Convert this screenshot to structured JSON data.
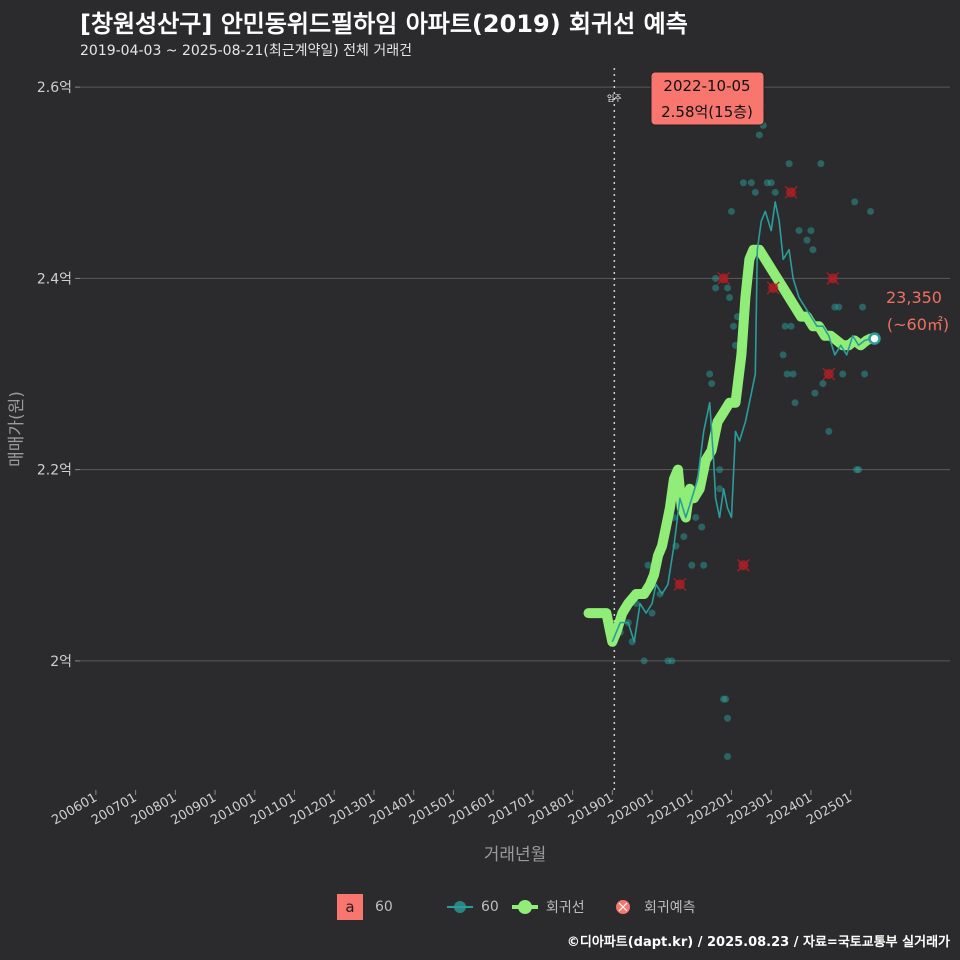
{
  "title": "[창원성산구] 안민동위드필하임 아파트(2019) 회귀선 예측",
  "subtitle": "2019-04-03 ~ 2025-08-21(최근계약일) 전체 거래건",
  "footer": "©디아파트(dapt.kr) / 2025.08.23 / 자료=국토교통부 실거래가",
  "colors": {
    "background": "#2b2b2d",
    "grid": "#5a5a5a",
    "teal": "#2a9d9a",
    "green": "#90ee78",
    "red": "#f8766d",
    "redmark": "#b01e24"
  },
  "legend": {
    "label_box_letter": "a",
    "label_box_text": "60",
    "series_60": "60",
    "series_regression": "회귀선",
    "series_prediction": "회귀예측"
  },
  "chart_data": {
    "type": "scatter",
    "title": "[창원성산구] 안민동위드필하임 아파트(2019) 회귀선 예측",
    "xlabel": "거래년월",
    "ylabel": "매매가(원)",
    "x_unit": "decimal year",
    "xlim": [
      2005.6,
      2027.5
    ],
    "ylim": [
      1.865,
      2.62
    ],
    "x_tick_labels": [
      "200601",
      "200701",
      "200801",
      "200901",
      "201001",
      "201101",
      "201201",
      "201301",
      "201401",
      "201501",
      "201601",
      "201701",
      "201801",
      "201901",
      "202001",
      "202101",
      "202201",
      "202301",
      "202401",
      "202501"
    ],
    "x_ticks": [
      2006.0,
      2007.0,
      2008.0,
      2009.0,
      2010.0,
      2011.0,
      2012.0,
      2013.0,
      2014.0,
      2015.0,
      2016.0,
      2017.0,
      2018.0,
      2019.0,
      2020.0,
      2021.0,
      2022.0,
      2023.0,
      2024.0,
      2025.0
    ],
    "y_ticks": [
      2.0,
      2.2,
      2.4,
      2.6
    ],
    "y_tick_labels": [
      "2억",
      "2.2억",
      "2.4억",
      "2.6억"
    ],
    "move_in_line": {
      "x": 2019.05,
      "label": "입주"
    },
    "annotation_top": {
      "x": 2021.75,
      "y": 2.58,
      "date": "2022-10-05",
      "text": "2.58억(15층)"
    },
    "annotation_right": {
      "x": 2025.6,
      "y": 2.337,
      "value": "23,350",
      "area": "(~60㎡)"
    },
    "scatter_60": [
      [
        2019.2,
        2.03
      ],
      [
        2019.3,
        2.05
      ],
      [
        2019.4,
        2.04
      ],
      [
        2019.5,
        2.02
      ],
      [
        2019.6,
        2.06
      ],
      [
        2019.8,
        2.0
      ],
      [
        2019.9,
        2.1
      ],
      [
        2020.0,
        2.05
      ],
      [
        2020.2,
        2.07
      ],
      [
        2020.4,
        2.0
      ],
      [
        2020.5,
        2.0
      ],
      [
        2020.55,
        2.15
      ],
      [
        2020.6,
        2.12
      ],
      [
        2020.7,
        2.2
      ],
      [
        2020.8,
        2.13
      ],
      [
        2020.9,
        2.16
      ],
      [
        2021.0,
        2.1
      ],
      [
        2021.1,
        2.15
      ],
      [
        2021.25,
        2.14
      ],
      [
        2021.3,
        2.1
      ],
      [
        2021.35,
        2.2
      ],
      [
        2021.45,
        2.3
      ],
      [
        2021.5,
        2.29
      ],
      [
        2021.6,
        2.4
      ],
      [
        2021.6,
        2.39
      ],
      [
        2021.7,
        2.2
      ],
      [
        2021.7,
        2.18
      ],
      [
        2021.8,
        1.96
      ],
      [
        2021.85,
        1.96
      ],
      [
        2021.9,
        1.94
      ],
      [
        2021.9,
        1.9
      ],
      [
        2021.9,
        2.39
      ],
      [
        2021.95,
        2.38
      ],
      [
        2022.0,
        2.47
      ],
      [
        2022.05,
        2.35
      ],
      [
        2022.1,
        2.33
      ],
      [
        2022.15,
        2.36
      ],
      [
        2022.3,
        2.5
      ],
      [
        2022.5,
        2.5
      ],
      [
        2022.6,
        2.49
      ],
      [
        2022.7,
        2.55
      ],
      [
        2022.75,
        2.58
      ],
      [
        2022.8,
        2.56
      ],
      [
        2022.9,
        2.5
      ],
      [
        2023.0,
        2.5
      ],
      [
        2023.1,
        2.49
      ],
      [
        2023.3,
        2.32
      ],
      [
        2023.35,
        2.35
      ],
      [
        2023.4,
        2.3
      ],
      [
        2023.45,
        2.52
      ],
      [
        2023.5,
        2.35
      ],
      [
        2023.55,
        2.3
      ],
      [
        2023.6,
        2.27
      ],
      [
        2023.7,
        2.45
      ],
      [
        2023.9,
        2.44
      ],
      [
        2024.0,
        2.45
      ],
      [
        2024.05,
        2.43
      ],
      [
        2024.1,
        2.28
      ],
      [
        2024.25,
        2.52
      ],
      [
        2024.3,
        2.29
      ],
      [
        2024.45,
        2.24
      ],
      [
        2024.6,
        2.37
      ],
      [
        2024.7,
        2.37
      ],
      [
        2024.8,
        2.3
      ],
      [
        2024.9,
        2.33
      ],
      [
        2025.0,
        2.33
      ],
      [
        2025.1,
        2.48
      ],
      [
        2025.15,
        2.2
      ],
      [
        2025.2,
        2.2
      ],
      [
        2025.3,
        2.37
      ],
      [
        2025.35,
        2.3
      ],
      [
        2025.5,
        2.47
      ]
    ],
    "line_60": [
      [
        2019.0,
        2.02
      ],
      [
        2019.2,
        2.04
      ],
      [
        2019.4,
        2.04
      ],
      [
        2019.55,
        2.02
      ],
      [
        2019.7,
        2.06
      ],
      [
        2019.85,
        2.05
      ],
      [
        2020.0,
        2.06
      ],
      [
        2020.1,
        2.08
      ],
      [
        2020.25,
        2.07
      ],
      [
        2020.4,
        2.08
      ],
      [
        2020.55,
        2.12
      ],
      [
        2020.7,
        2.17
      ],
      [
        2020.85,
        2.15
      ],
      [
        2021.0,
        2.17
      ],
      [
        2021.15,
        2.19
      ],
      [
        2021.3,
        2.24
      ],
      [
        2021.45,
        2.27
      ],
      [
        2021.55,
        2.21
      ],
      [
        2021.6,
        2.17
      ],
      [
        2021.7,
        2.15
      ],
      [
        2021.8,
        2.18
      ],
      [
        2021.9,
        2.16
      ],
      [
        2022.0,
        2.15
      ],
      [
        2022.1,
        2.24
      ],
      [
        2022.2,
        2.23
      ],
      [
        2022.35,
        2.25
      ],
      [
        2022.5,
        2.28
      ],
      [
        2022.6,
        2.3
      ],
      [
        2022.65,
        2.43
      ],
      [
        2022.75,
        2.46
      ],
      [
        2022.85,
        2.47
      ],
      [
        2023.0,
        2.45
      ],
      [
        2023.1,
        2.48
      ],
      [
        2023.2,
        2.46
      ],
      [
        2023.3,
        2.42
      ],
      [
        2023.45,
        2.43
      ],
      [
        2023.55,
        2.4
      ],
      [
        2023.7,
        2.38
      ],
      [
        2023.85,
        2.37
      ],
      [
        2024.0,
        2.36
      ],
      [
        2024.15,
        2.35
      ],
      [
        2024.3,
        2.35
      ],
      [
        2024.45,
        2.34
      ],
      [
        2024.6,
        2.32
      ],
      [
        2024.75,
        2.33
      ],
      [
        2024.9,
        2.32
      ],
      [
        2025.05,
        2.34
      ],
      [
        2025.2,
        2.33
      ],
      [
        2025.35,
        2.335
      ],
      [
        2025.5,
        2.337
      ]
    ],
    "regression": [
      [
        2018.4,
        2.05
      ],
      [
        2018.7,
        2.05
      ],
      [
        2018.85,
        2.05
      ],
      [
        2018.95,
        2.03
      ],
      [
        2019.0,
        2.02
      ],
      [
        2019.1,
        2.03
      ],
      [
        2019.25,
        2.05
      ],
      [
        2019.4,
        2.06
      ],
      [
        2019.6,
        2.07
      ],
      [
        2019.8,
        2.07
      ],
      [
        2019.95,
        2.08
      ],
      [
        2020.05,
        2.09
      ],
      [
        2020.15,
        2.11
      ],
      [
        2020.25,
        2.12
      ],
      [
        2020.35,
        2.14
      ],
      [
        2020.45,
        2.16
      ],
      [
        2020.55,
        2.19
      ],
      [
        2020.65,
        2.2
      ],
      [
        2020.75,
        2.16
      ],
      [
        2020.85,
        2.15
      ],
      [
        2020.95,
        2.18
      ],
      [
        2021.05,
        2.17
      ],
      [
        2021.2,
        2.18
      ],
      [
        2021.35,
        2.21
      ],
      [
        2021.5,
        2.22
      ],
      [
        2021.65,
        2.25
      ],
      [
        2021.8,
        2.26
      ],
      [
        2021.95,
        2.27
      ],
      [
        2022.1,
        2.27
      ],
      [
        2022.25,
        2.32
      ],
      [
        2022.35,
        2.38
      ],
      [
        2022.45,
        2.42
      ],
      [
        2022.55,
        2.43
      ],
      [
        2022.7,
        2.43
      ],
      [
        2022.85,
        2.42
      ],
      [
        2023.0,
        2.41
      ],
      [
        2023.15,
        2.4
      ],
      [
        2023.3,
        2.39
      ],
      [
        2023.45,
        2.38
      ],
      [
        2023.6,
        2.37
      ],
      [
        2023.75,
        2.36
      ],
      [
        2023.9,
        2.36
      ],
      [
        2024.05,
        2.35
      ],
      [
        2024.2,
        2.35
      ],
      [
        2024.35,
        2.34
      ],
      [
        2024.5,
        2.34
      ],
      [
        2024.65,
        2.335
      ],
      [
        2024.8,
        2.33
      ],
      [
        2024.95,
        2.33
      ],
      [
        2025.1,
        2.335
      ],
      [
        2025.25,
        2.33
      ],
      [
        2025.4,
        2.335
      ],
      [
        2025.5,
        2.337
      ]
    ],
    "prediction_points": [
      [
        2020.7,
        2.08
      ],
      [
        2021.8,
        2.4
      ],
      [
        2022.3,
        2.1
      ],
      [
        2023.05,
        2.39
      ],
      [
        2023.5,
        2.49
      ],
      [
        2024.45,
        2.3
      ],
      [
        2024.55,
        2.4
      ]
    ],
    "legend_position": "bottom"
  }
}
